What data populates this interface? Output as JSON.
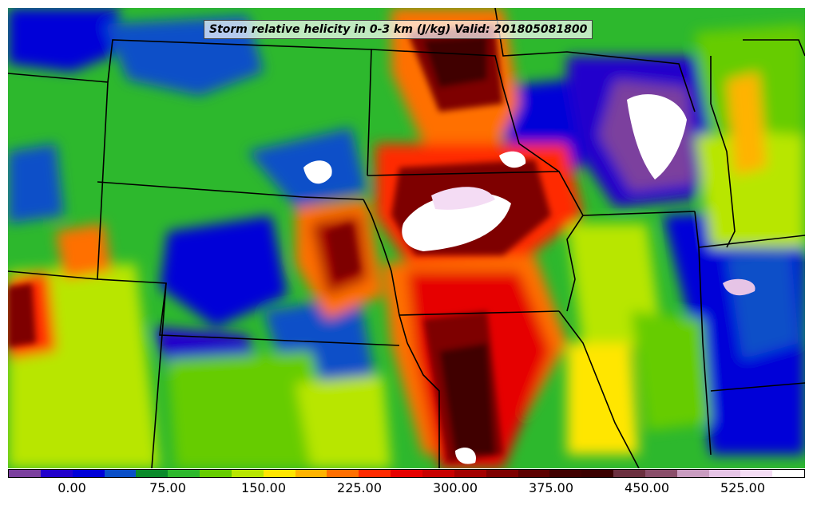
{
  "title": "Storm relative helicity in 0-3 km (J/kg) Valid: 201805081800",
  "colorbar": {
    "colors": [
      "#7b3f9e",
      "#2200cc",
      "#0000d8",
      "#0a4fc8",
      "#0a8a2a",
      "#2db82d",
      "#66cc00",
      "#b8e600",
      "#ffe600",
      "#ffb300",
      "#ff6f00",
      "#ff2a00",
      "#e60000",
      "#c80000",
      "#a30000",
      "#7e0000",
      "#5c0000",
      "#400000",
      "#3a0000",
      "#6b2f3f",
      "#8a4e6a",
      "#c99cc0",
      "#e6c4e6",
      "#f4dcf4",
      "#ffffff"
    ],
    "ticks": [
      "0.00",
      "75.00",
      "150.00",
      "225.00",
      "300.00",
      "375.00",
      "450.00",
      "525.00"
    ]
  }
}
